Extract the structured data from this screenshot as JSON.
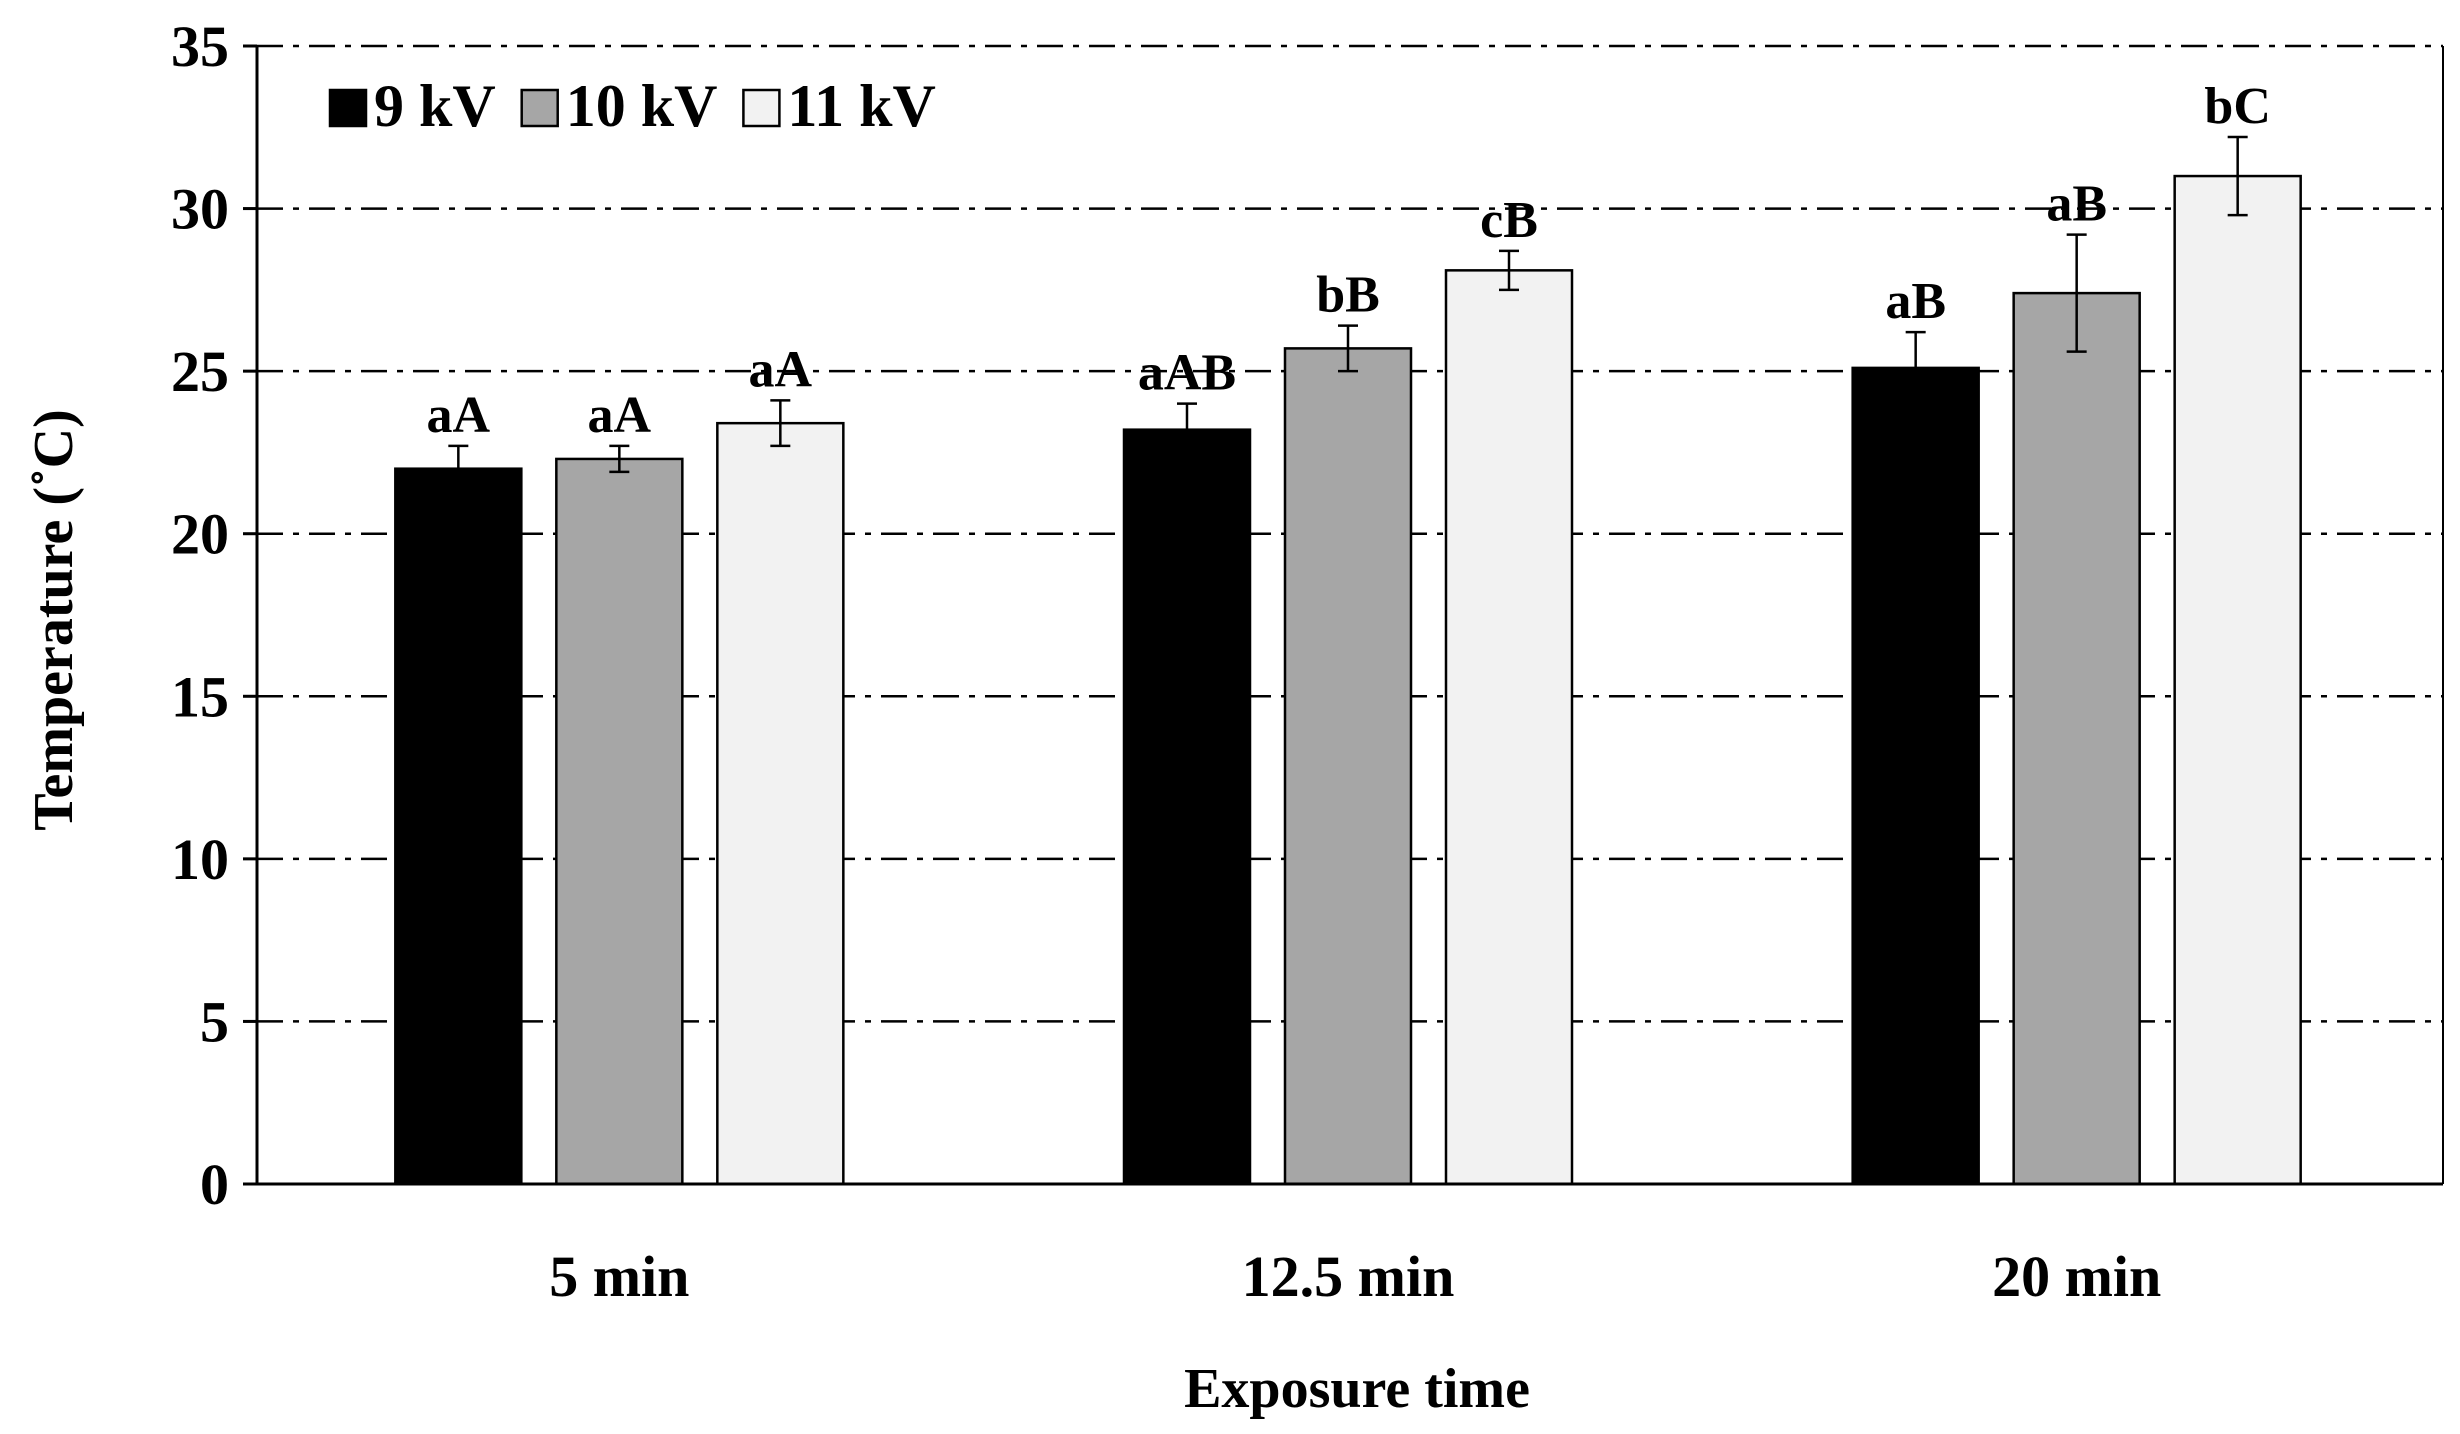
{
  "chart_data": {
    "type": "bar",
    "title": "",
    "xlabel": "Exposure time",
    "ylabel": "Temperature (˚C)",
    "ylim": [
      0,
      35
    ],
    "yticks": [
      "0",
      "5",
      "10",
      "15",
      "20",
      "25",
      "30",
      "35"
    ],
    "ytick_values": [
      0,
      5,
      10,
      15,
      20,
      25,
      30,
      35
    ],
    "grid": true,
    "legend_position": "top-left",
    "categories": [
      "5 min",
      "12.5 min",
      "20 min"
    ],
    "series": [
      {
        "name": "9 kV",
        "color": "#000000",
        "values": [
          22.0,
          23.2,
          25.1
        ],
        "errors": [
          0.7,
          0.8,
          1.1
        ],
        "labels": [
          "aA",
          "aAB",
          "aB"
        ]
      },
      {
        "name": "10 kV",
        "color": "#a6a6a6",
        "values": [
          22.3,
          25.7,
          27.4
        ],
        "errors": [
          0.4,
          0.7,
          1.8
        ],
        "labels": [
          "aA",
          "bB",
          "aB"
        ]
      },
      {
        "name": "11 kV",
        "color": "#f2f2f2",
        "values": [
          23.4,
          28.1,
          31.0
        ],
        "errors": [
          0.7,
          0.6,
          1.2
        ],
        "labels": [
          "aA",
          "cB",
          "bC"
        ]
      }
    ]
  }
}
